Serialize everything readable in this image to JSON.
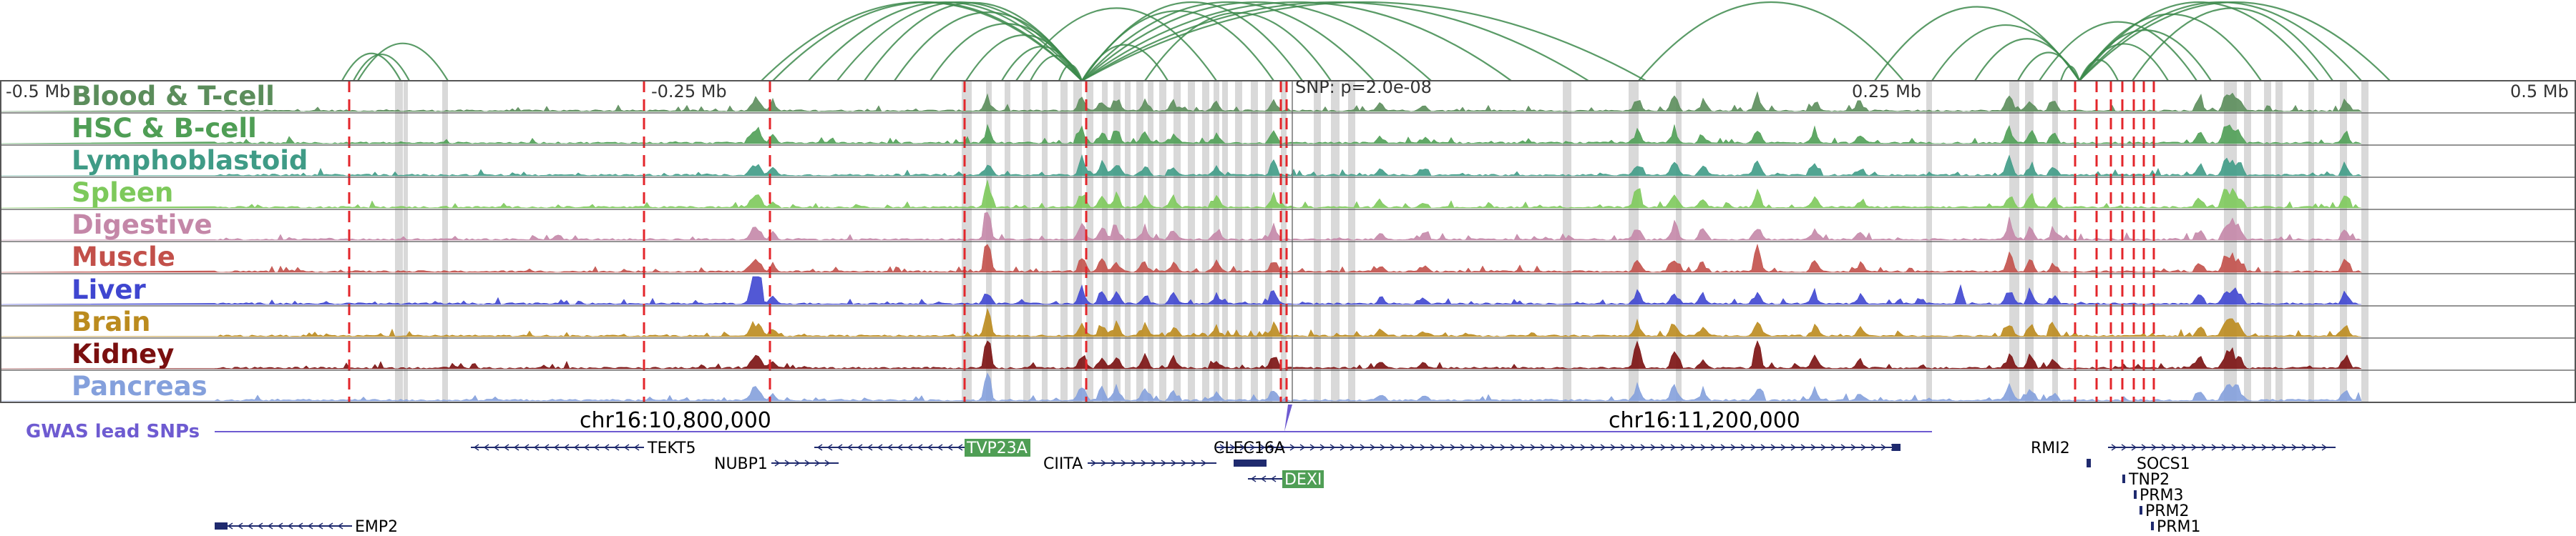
{
  "axis_labels": {
    "left": "-0.5 Mb",
    "left_mid": "-0.25 Mb",
    "snp": "SNP: p=2.0e-08",
    "right_mid": "0.25 Mb",
    "right": "0.5 Mb"
  },
  "coordinates": [
    "chr16:10,800,000",
    "chr16:11,200,000"
  ],
  "gwas_label": "GWAS lead SNPs",
  "tracks": [
    {
      "key": "blood",
      "label": "Blood & T-cell",
      "color": "#5b8d5b"
    },
    {
      "key": "hsc",
      "label": "HSC & B-cell",
      "color": "#4f9e55"
    },
    {
      "key": "lympho",
      "label": "Lymphoblastoid",
      "color": "#3f9b86"
    },
    {
      "key": "spleen",
      "label": "Spleen",
      "color": "#7dc95b"
    },
    {
      "key": "digest",
      "label": "Digestive",
      "color": "#c487a8"
    },
    {
      "key": "muscle",
      "label": "Muscle",
      "color": "#c2504a"
    },
    {
      "key": "liver",
      "label": "Liver",
      "color": "#3f46d0"
    },
    {
      "key": "brain",
      "label": "Brain",
      "color": "#bb8b1e"
    },
    {
      "key": "kidney",
      "label": "Kidney",
      "color": "#7a0f0f"
    },
    {
      "key": "pancreas",
      "label": "Pancreas",
      "color": "#84a0dc"
    }
  ],
  "genes": [
    {
      "name": "TEKT5",
      "highlight": false
    },
    {
      "name": "NUBP1",
      "highlight": false
    },
    {
      "name": "TVP23A",
      "highlight": true
    },
    {
      "name": "CIITA",
      "highlight": false
    },
    {
      "name": "CLEC16A",
      "highlight": false
    },
    {
      "name": "DEXI",
      "highlight": true
    },
    {
      "name": "RMI2",
      "highlight": false
    },
    {
      "name": "SOCS1",
      "highlight": false
    },
    {
      "name": "TNP2",
      "highlight": false
    },
    {
      "name": "PRM3",
      "highlight": false
    },
    {
      "name": "PRM2",
      "highlight": false
    },
    {
      "name": "PRM1",
      "highlight": false
    },
    {
      "name": "EMP2",
      "highlight": false
    }
  ],
  "colors": {
    "arc": "#3d8a4c",
    "snp_line": "#e3262b",
    "gene": "#1f2a6e",
    "gene_highlight_bg": "#4f9e55",
    "gwas": "#6e5bd1",
    "shade": "#d9d9d9"
  }
}
